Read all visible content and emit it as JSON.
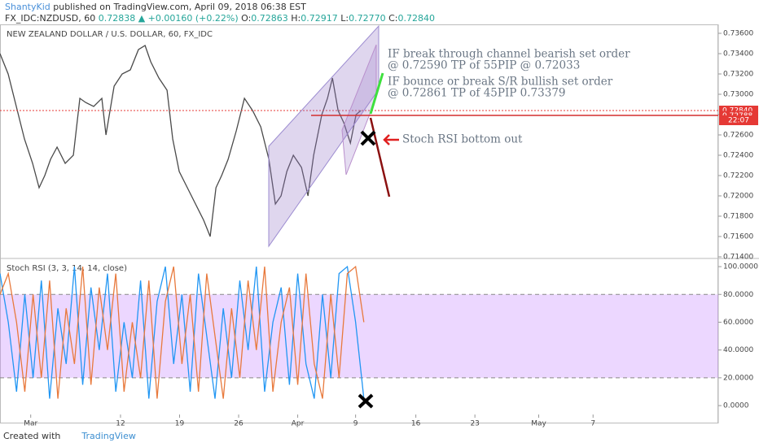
{
  "header": {
    "author": "ShantyKid",
    "published": "published on TradingView.com, April 09, 2018 06:38 EST",
    "symbol": "FX_IDC:NZDUSD, 60",
    "last": "0.72838",
    "change": "▲ +0.00160 (+0.22%)",
    "o_label": "O:",
    "o": "0.72863",
    "h_label": "H:",
    "h": "0.72917",
    "l_label": "L:",
    "l": "0.72770",
    "c_label": "C:",
    "c": "0.72840"
  },
  "footer": {
    "created": "Created with",
    "brand": "TradingView"
  },
  "chart_data": [
    {
      "type": "line",
      "title": "NEW ZEALAND DOLLAR / U.S. DOLLAR, 60, FX_IDC",
      "x": [
        0,
        0.69,
        1.38,
        2.07,
        2.76,
        3.31,
        3.79,
        4.28,
        4.83,
        5.52,
        6.21,
        6.76,
        7.24,
        7.93,
        8.62,
        8.97,
        9.66,
        10.34,
        11.03,
        11.72,
        12.28,
        12.76,
        13.45,
        14.14,
        14.62,
        15.17,
        15.86,
        16.55,
        17.24,
        17.79,
        18.28,
        18.76,
        19.31,
        20,
        20.69,
        21.38,
        22.07,
        22.76,
        23.31,
        23.79,
        24.28,
        24.83,
        25.52,
        26.07,
        26.55,
        27.24,
        27.72,
        28.14,
        28.62,
        29.1,
        29.66,
        30.14,
        30.55
      ],
      "series": [
        {
          "color": "#4a4a4a",
          "values": [
            0.734,
            0.732,
            0.7288,
            0.7256,
            0.7232,
            0.7208,
            0.722,
            0.7236,
            0.7248,
            0.7232,
            0.724,
            0.7296,
            0.7292,
            0.7288,
            0.7296,
            0.726,
            0.7308,
            0.732,
            0.7324,
            0.7344,
            0.7348,
            0.7332,
            0.7316,
            0.7304,
            0.7256,
            0.7224,
            0.7208,
            0.7192,
            0.7176,
            0.716,
            0.7208,
            0.722,
            0.7236,
            0.7264,
            0.7296,
            0.7284,
            0.7268,
            0.7236,
            0.7192,
            0.72,
            0.7224,
            0.724,
            0.7228,
            0.72,
            0.724,
            0.728,
            0.7296,
            0.7316,
            0.7284,
            0.7272,
            0.7252,
            0.728,
            0.7284
          ]
        }
      ],
      "xlim": [
        0,
        60.8
      ],
      "ylim": [
        0.71384,
        0.7368
      ],
      "yticks": [
        {
          "value": 0.714,
          "label": "0.71400"
        },
        {
          "value": 0.716,
          "label": "0.71600"
        },
        {
          "value": 0.718,
          "label": "0.71800"
        },
        {
          "value": 0.72,
          "label": "0.72000"
        },
        {
          "value": 0.722,
          "label": "0.72200"
        },
        {
          "value": 0.724,
          "label": "0.72400"
        },
        {
          "value": 0.726,
          "label": "0.72600"
        },
        {
          "value": 0.728,
          "label": "0.72800"
        },
        {
          "value": 0.73,
          "label": "0.73000"
        },
        {
          "value": 0.732,
          "label": "0.73200"
        },
        {
          "value": 0.734,
          "label": "0.73400"
        },
        {
          "value": 0.736,
          "label": "0.73600"
        }
      ],
      "price_markers": [
        {
          "value": 0.7284,
          "label": "0.72840"
        },
        {
          "value": 0.72788,
          "label": "0.72788"
        }
      ],
      "countdown": "22:07",
      "annotations": [
        "IF break through channel bearish set order",
        "@ 0.72590 TP of 55PIP @ 0.72033",
        "IF bounce or break S/R bullish set order",
        "@ 0.72861 TP of 45PIP 0.73379",
        "Stoch RSI bottom out"
      ]
    },
    {
      "type": "line",
      "title": "Stoch RSI (3, 3, 14, 14, close)",
      "x": [
        0,
        0.7,
        1.4,
        2.1,
        2.8,
        3.5,
        4.2,
        4.9,
        5.6,
        6.3,
        7,
        7.7,
        8.4,
        9.1,
        9.8,
        10.5,
        11.2,
        11.9,
        12.6,
        13.3,
        14,
        14.7,
        15.4,
        16.1,
        16.8,
        17.5,
        18.2,
        18.9,
        19.6,
        20.3,
        21,
        21.7,
        22.4,
        23.1,
        23.8,
        24.5,
        25.2,
        25.9,
        26.6,
        27.3,
        28,
        28.7,
        29.4,
        30.1,
        30.8
      ],
      "series": [
        {
          "color": "#2196f3",
          "values": [
            95,
            60,
            10,
            80,
            20,
            90,
            5,
            70,
            30,
            100,
            15,
            85,
            40,
            95,
            10,
            60,
            20,
            90,
            5,
            75,
            100,
            30,
            80,
            10,
            95,
            50,
            5,
            70,
            20,
            90,
            40,
            100,
            10,
            60,
            85,
            15,
            95,
            30,
            5,
            80,
            20,
            95,
            100,
            60,
            5
          ]
        },
        {
          "color": "#e8793c",
          "values": [
            80,
            95,
            60,
            10,
            80,
            20,
            90,
            5,
            70,
            30,
            100,
            15,
            85,
            40,
            95,
            10,
            60,
            20,
            90,
            5,
            75,
            100,
            30,
            80,
            10,
            95,
            50,
            5,
            70,
            20,
            90,
            40,
            100,
            10,
            60,
            85,
            15,
            95,
            30,
            5,
            80,
            20,
            95,
            100,
            60
          ]
        }
      ],
      "band": [
        20,
        80
      ],
      "xlim": [
        0,
        60.8
      ],
      "ylim": [
        -6.4,
        105.3
      ],
      "yticks": [
        {
          "value": 0,
          "label": "0.0000"
        },
        {
          "value": 20,
          "label": "20.0000"
        },
        {
          "value": 40,
          "label": "40.0000"
        },
        {
          "value": 60,
          "label": "60.0000"
        },
        {
          "value": 80,
          "label": "80.0000"
        },
        {
          "value": 100,
          "label": "100.0000"
        }
      ],
      "xticks": [
        {
          "value": 2.6,
          "label": "Mar"
        },
        {
          "value": 10.2,
          "label": "12"
        },
        {
          "value": 15.2,
          "label": "19"
        },
        {
          "value": 20.2,
          "label": "26"
        },
        {
          "value": 25.2,
          "label": "Apr"
        },
        {
          "value": 30.1,
          "label": "9"
        },
        {
          "value": 35.2,
          "label": "16"
        },
        {
          "value": 40.2,
          "label": "23"
        },
        {
          "value": 45.6,
          "label": "May"
        },
        {
          "value": 50.2,
          "label": "7"
        }
      ]
    }
  ]
}
